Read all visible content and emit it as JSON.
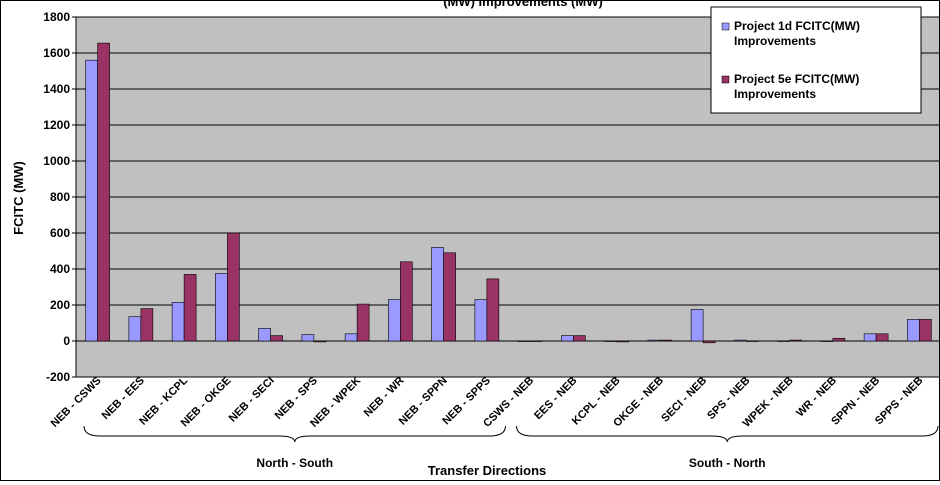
{
  "chart_data": {
    "type": "bar",
    "title": "(MW) Improvements (MW)",
    "xlabel": "Transfer Directions",
    "ylabel": "FCITC (MW)",
    "ylim": [
      -200,
      1800
    ],
    "yticks": [
      -200,
      0,
      200,
      400,
      600,
      800,
      1000,
      1200,
      1400,
      1600,
      1800
    ],
    "grid": true,
    "legend_position": "top-right",
    "categories": [
      "NEB - CSWS",
      "NEB - EES",
      "NEB - KCPL",
      "NEB - OKGE",
      "NEB - SECI",
      "NEB - SPS",
      "NEB - WPEK",
      "NEB - WR",
      "NEB - SPPN",
      "NEB - SPPS",
      "CSWS - NEB",
      "EES - NEB",
      "KCPL - NEB",
      "OKGE - NEB",
      "SECI - NEB",
      "SPS - NEB",
      "WPEK - NEB",
      "WR - NEB",
      "SPPN - NEB",
      "SPPS - NEB"
    ],
    "series": [
      {
        "name": "Project 1d FCITC(MW) Improvements",
        "color": "#9999ff",
        "values": [
          1560,
          135,
          215,
          375,
          70,
          35,
          40,
          230,
          520,
          230,
          0,
          30,
          0,
          5,
          175,
          5,
          0,
          0,
          40,
          120
        ]
      },
      {
        "name": "Project 5e FCITC(MW) Improvements",
        "color": "#993366",
        "values": [
          1655,
          180,
          370,
          600,
          30,
          -5,
          205,
          440,
          490,
          345,
          0,
          30,
          -5,
          5,
          -10,
          0,
          5,
          15,
          40,
          120
        ]
      }
    ],
    "groups": [
      {
        "label": "North - South",
        "range": [
          0,
          9
        ]
      },
      {
        "label": "South - North",
        "range": [
          10,
          19
        ]
      }
    ]
  },
  "colors": {
    "plot_background": "#c0c0c0",
    "gridline": "#000000"
  }
}
